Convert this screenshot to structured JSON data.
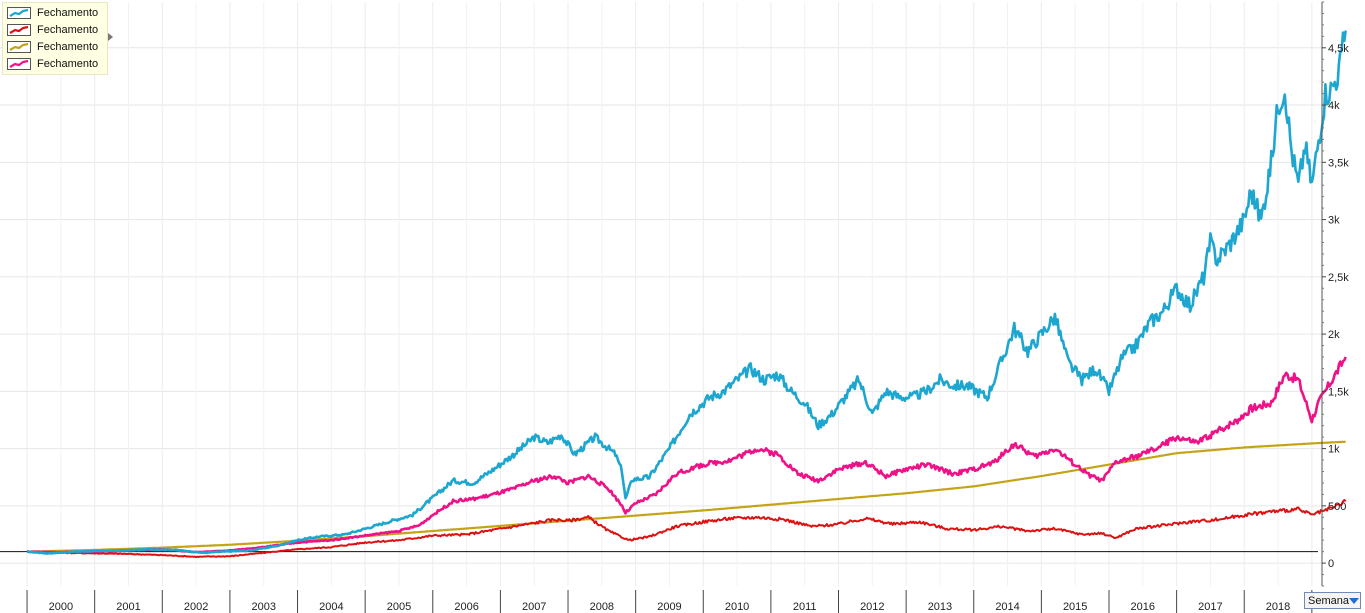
{
  "chart_data": {
    "type": "line",
    "title": "",
    "xlabel": "",
    "ylabel": "",
    "x_range": [
      1999.6,
      2019.15
    ],
    "ylim": [
      -200,
      4900
    ],
    "x_tick_labels": [
      "2000",
      "2001",
      "2002",
      "2003",
      "2004",
      "2005",
      "2006",
      "2007",
      "2008",
      "2009",
      "2010",
      "2011",
      "2012",
      "2013",
      "2014",
      "2015",
      "2016",
      "2017",
      "2018"
    ],
    "y_ticks": [
      0,
      500,
      1000,
      1500,
      2000,
      2500,
      3000,
      3500,
      4000,
      4500
    ],
    "y_tick_labels": [
      "0",
      "500",
      "1k",
      "1,5k",
      "2k",
      "2,5k",
      "3k",
      "3,5k",
      "4k",
      "4,5k"
    ],
    "baseline": 100,
    "grid": true,
    "legend_position": "top-left",
    "series": [
      {
        "name": "Fechamento",
        "color": "#1da6cf",
        "width": 2.6,
        "points": [
          [
            2000.0,
            100
          ],
          [
            2000.3,
            85
          ],
          [
            2000.7,
            100
          ],
          [
            2001.0,
            105
          ],
          [
            2001.4,
            110
          ],
          [
            2001.8,
            120
          ],
          [
            2002.2,
            115
          ],
          [
            2002.6,
            90
          ],
          [
            2002.9,
            100
          ],
          [
            2003.3,
            110
          ],
          [
            2003.7,
            150
          ],
          [
            2004.0,
            200
          ],
          [
            2004.3,
            230
          ],
          [
            2004.7,
            250
          ],
          [
            2005.0,
            300
          ],
          [
            2005.4,
            370
          ],
          [
            2005.7,
            420
          ],
          [
            2006.0,
            570
          ],
          [
            2006.3,
            720
          ],
          [
            2006.6,
            700
          ],
          [
            2006.9,
            820
          ],
          [
            2007.2,
            950
          ],
          [
            2007.5,
            1100
          ],
          [
            2007.7,
            1050
          ],
          [
            2007.9,
            1120
          ],
          [
            2008.1,
            950
          ],
          [
            2008.4,
            1100
          ],
          [
            2008.7,
            950
          ],
          [
            2008.8,
            800
          ],
          [
            2008.85,
            560
          ],
          [
            2008.95,
            730
          ],
          [
            2009.2,
            750
          ],
          [
            2009.5,
            1000
          ],
          [
            2009.8,
            1300
          ],
          [
            2010.1,
            1450
          ],
          [
            2010.3,
            1500
          ],
          [
            2010.5,
            1600
          ],
          [
            2010.7,
            1700
          ],
          [
            2010.9,
            1600
          ],
          [
            2011.1,
            1650
          ],
          [
            2011.3,
            1500
          ],
          [
            2011.5,
            1400
          ],
          [
            2011.7,
            1200
          ],
          [
            2011.9,
            1300
          ],
          [
            2012.1,
            1450
          ],
          [
            2012.3,
            1600
          ],
          [
            2012.5,
            1300
          ],
          [
            2012.7,
            1500
          ],
          [
            2012.9,
            1450
          ],
          [
            2013.1,
            1450
          ],
          [
            2013.3,
            1500
          ],
          [
            2013.5,
            1600
          ],
          [
            2013.7,
            1550
          ],
          [
            2013.9,
            1550
          ],
          [
            2014.2,
            1450
          ],
          [
            2014.4,
            1750
          ],
          [
            2014.6,
            2050
          ],
          [
            2014.8,
            1850
          ],
          [
            2015.0,
            2000
          ],
          [
            2015.2,
            2150
          ],
          [
            2015.4,
            1750
          ],
          [
            2015.6,
            1600
          ],
          [
            2015.8,
            1700
          ],
          [
            2016.0,
            1500
          ],
          [
            2016.2,
            1800
          ],
          [
            2016.4,
            1900
          ],
          [
            2016.6,
            2100
          ],
          [
            2016.8,
            2200
          ],
          [
            2017.0,
            2400
          ],
          [
            2017.2,
            2250
          ],
          [
            2017.4,
            2500
          ],
          [
            2017.5,
            2800
          ],
          [
            2017.6,
            2650
          ],
          [
            2017.8,
            2800
          ],
          [
            2018.0,
            3000
          ],
          [
            2018.1,
            3250
          ],
          [
            2018.25,
            3000
          ],
          [
            2018.4,
            3500
          ],
          [
            2018.5,
            4000
          ],
          [
            2018.6,
            4150
          ],
          [
            2018.7,
            3600
          ],
          [
            2018.8,
            3300
          ],
          [
            2018.9,
            3650
          ],
          [
            2019.0,
            3300
          ],
          [
            2019.1,
            3700
          ],
          [
            2019.2,
            4100
          ],
          [
            2019.3,
            4150
          ],
          [
            2019.4,
            4300
          ],
          [
            2019.5,
            4650
          ]
        ]
      },
      {
        "name": "Fechamento",
        "color": "#dd1111",
        "width": 2.0,
        "points": [
          [
            2000.0,
            100
          ],
          [
            2000.5,
            90
          ],
          [
            2001.0,
            85
          ],
          [
            2001.5,
            80
          ],
          [
            2002.0,
            70
          ],
          [
            2002.5,
            55
          ],
          [
            2003.0,
            60
          ],
          [
            2003.5,
            90
          ],
          [
            2004.0,
            120
          ],
          [
            2004.5,
            140
          ],
          [
            2005.0,
            180
          ],
          [
            2005.5,
            200
          ],
          [
            2006.0,
            240
          ],
          [
            2006.5,
            250
          ],
          [
            2007.0,
            300
          ],
          [
            2007.5,
            350
          ],
          [
            2007.8,
            380
          ],
          [
            2008.0,
            370
          ],
          [
            2008.3,
            400
          ],
          [
            2008.6,
            280
          ],
          [
            2008.9,
            200
          ],
          [
            2009.2,
            230
          ],
          [
            2009.6,
            320
          ],
          [
            2010.0,
            360
          ],
          [
            2010.4,
            390
          ],
          [
            2010.8,
            400
          ],
          [
            2011.2,
            380
          ],
          [
            2011.6,
            320
          ],
          [
            2012.0,
            340
          ],
          [
            2012.4,
            390
          ],
          [
            2012.8,
            340
          ],
          [
            2013.2,
            360
          ],
          [
            2013.6,
            300
          ],
          [
            2014.0,
            290
          ],
          [
            2014.4,
            320
          ],
          [
            2014.8,
            280
          ],
          [
            2015.2,
            300
          ],
          [
            2015.6,
            250
          ],
          [
            2015.9,
            260
          ],
          [
            2016.1,
            220
          ],
          [
            2016.4,
            300
          ],
          [
            2016.8,
            330
          ],
          [
            2017.2,
            360
          ],
          [
            2017.6,
            380
          ],
          [
            2018.0,
            420
          ],
          [
            2018.4,
            450
          ],
          [
            2018.8,
            470
          ],
          [
            2019.0,
            420
          ],
          [
            2019.3,
            480
          ],
          [
            2019.5,
            540
          ]
        ]
      },
      {
        "name": "Fechamento",
        "color": "#c4a317",
        "width": 2.2,
        "points": [
          [
            2000.0,
            100
          ],
          [
            2001.0,
            115
          ],
          [
            2002.0,
            135
          ],
          [
            2003.0,
            160
          ],
          [
            2004.0,
            195
          ],
          [
            2005.0,
            235
          ],
          [
            2006.0,
            280
          ],
          [
            2007.0,
            325
          ],
          [
            2008.0,
            370
          ],
          [
            2009.0,
            415
          ],
          [
            2010.0,
            460
          ],
          [
            2011.0,
            510
          ],
          [
            2012.0,
            560
          ],
          [
            2013.0,
            610
          ],
          [
            2014.0,
            670
          ],
          [
            2015.0,
            760
          ],
          [
            2016.0,
            860
          ],
          [
            2017.0,
            960
          ],
          [
            2018.0,
            1010
          ],
          [
            2019.0,
            1045
          ],
          [
            2019.5,
            1060
          ]
        ]
      },
      {
        "name": "Fechamento",
        "color": "#ee1188",
        "width": 2.6,
        "points": [
          [
            2000.0,
            100
          ],
          [
            2000.5,
            95
          ],
          [
            2001.0,
            100
          ],
          [
            2001.5,
            110
          ],
          [
            2002.0,
            120
          ],
          [
            2002.5,
            95
          ],
          [
            2003.0,
            110
          ],
          [
            2003.5,
            140
          ],
          [
            2004.0,
            180
          ],
          [
            2004.5,
            200
          ],
          [
            2005.0,
            240
          ],
          [
            2005.5,
            280
          ],
          [
            2005.8,
            330
          ],
          [
            2006.0,
            420
          ],
          [
            2006.3,
            540
          ],
          [
            2006.6,
            560
          ],
          [
            2006.9,
            600
          ],
          [
            2007.2,
            650
          ],
          [
            2007.5,
            720
          ],
          [
            2007.8,
            760
          ],
          [
            2008.0,
            700
          ],
          [
            2008.3,
            760
          ],
          [
            2008.6,
            650
          ],
          [
            2008.8,
            500
          ],
          [
            2008.85,
            440
          ],
          [
            2009.0,
            520
          ],
          [
            2009.3,
            600
          ],
          [
            2009.6,
            780
          ],
          [
            2010.0,
            860
          ],
          [
            2010.4,
            900
          ],
          [
            2010.8,
            1000
          ],
          [
            2011.1,
            950
          ],
          [
            2011.4,
            780
          ],
          [
            2011.7,
            720
          ],
          [
            2012.0,
            820
          ],
          [
            2012.4,
            880
          ],
          [
            2012.7,
            760
          ],
          [
            2013.0,
            820
          ],
          [
            2013.3,
            860
          ],
          [
            2013.7,
            780
          ],
          [
            2014.0,
            820
          ],
          [
            2014.3,
            880
          ],
          [
            2014.6,
            1040
          ],
          [
            2014.9,
            930
          ],
          [
            2015.2,
            1000
          ],
          [
            2015.5,
            860
          ],
          [
            2015.7,
            770
          ],
          [
            2015.9,
            720
          ],
          [
            2016.1,
            880
          ],
          [
            2016.4,
            930
          ],
          [
            2016.7,
            1000
          ],
          [
            2017.0,
            1100
          ],
          [
            2017.3,
            1050
          ],
          [
            2017.6,
            1150
          ],
          [
            2017.9,
            1250
          ],
          [
            2018.1,
            1350
          ],
          [
            2018.4,
            1400
          ],
          [
            2018.6,
            1650
          ],
          [
            2018.8,
            1600
          ],
          [
            2019.0,
            1250
          ],
          [
            2019.1,
            1400
          ],
          [
            2019.3,
            1600
          ],
          [
            2019.5,
            1800
          ]
        ]
      }
    ]
  },
  "controls": {
    "period_label": "Semana"
  }
}
